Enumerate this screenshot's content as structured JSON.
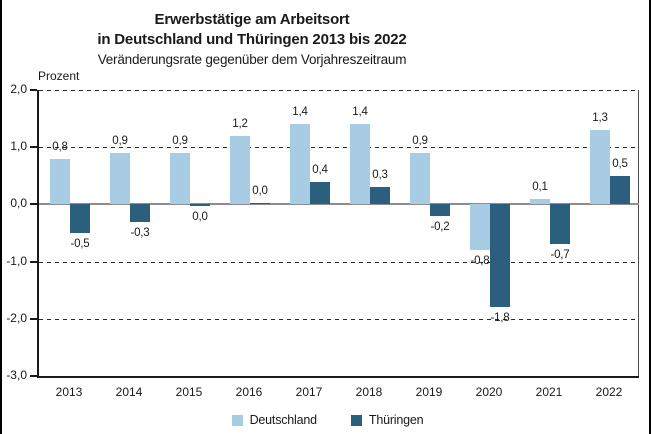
{
  "title": {
    "line1": "Erwerbstätige am Arbeitsort",
    "line2": "in Deutschland und Thüringen 2013 bis 2022",
    "subtitle": "Veränderungsrate gegenüber dem Vorjahreszeitraum"
  },
  "chart_data": {
    "type": "bar",
    "title": "Erwerbstätige am Arbeitsort in Deutschland und Thüringen 2013 bis 2022",
    "subtitle": "Veränderungsrate gegenüber dem Vorjahreszeitraum",
    "ylabel": "Prozent",
    "xlabel": "",
    "ylim": [
      -3.0,
      2.0
    ],
    "grid": "horizontal dashed",
    "legend_position": "bottom-center",
    "categories": [
      "2013",
      "2014",
      "2015",
      "2016",
      "2017",
      "2018",
      "2019",
      "2020",
      "2021",
      "2022"
    ],
    "series": [
      {
        "name": "Deutschland",
        "color": "#a7cce4",
        "values": [
          0.8,
          0.9,
          0.9,
          1.2,
          1.4,
          1.4,
          0.9,
          -0.8,
          0.1,
          1.3
        ],
        "labels": [
          "0,8",
          "0,9",
          "0,9",
          "1,2",
          "1,4",
          "1,4",
          "0,9",
          "-0,8",
          "0,1",
          "1,3"
        ],
        "label_side": [
          "above",
          "above",
          "above",
          "above",
          "above",
          "above",
          "above",
          "below",
          "above",
          "above"
        ]
      },
      {
        "name": "Thüringen",
        "color": "#2b5f7d",
        "values": [
          -0.5,
          -0.3,
          0.0,
          0.0,
          0.4,
          0.3,
          -0.2,
          -1.8,
          -0.7,
          0.5
        ],
        "labels": [
          "-0,5",
          "-0,3",
          "0,0",
          "0,0",
          "0,4",
          "0,3",
          "-0,2",
          "-1,8",
          "-0,7",
          "0,5"
        ],
        "label_side": [
          "below",
          "below",
          "below",
          "above",
          "above",
          "above",
          "below",
          "below",
          "below",
          "above"
        ]
      }
    ],
    "y_ticks": [
      {
        "v": 2,
        "label": "2,0"
      },
      {
        "v": 1,
        "label": "1,0"
      },
      {
        "v": 0,
        "label": "0,0"
      },
      {
        "v": -1,
        "label": "-1,0"
      },
      {
        "v": -2,
        "label": "-2,0"
      },
      {
        "v": -3,
        "label": "-3,0"
      }
    ]
  },
  "legend": {
    "items": [
      {
        "label": "Deutschland",
        "color": "#a7cce4"
      },
      {
        "label": "Thüringen",
        "color": "#2b5f7d"
      }
    ]
  },
  "colors": {
    "series_deutschland": "#a7cce4",
    "series_thueringen": "#2b5f7d",
    "zero_line": "#8c8c8c",
    "axis": "#1a1a1a",
    "frame_edge": "#000000"
  }
}
